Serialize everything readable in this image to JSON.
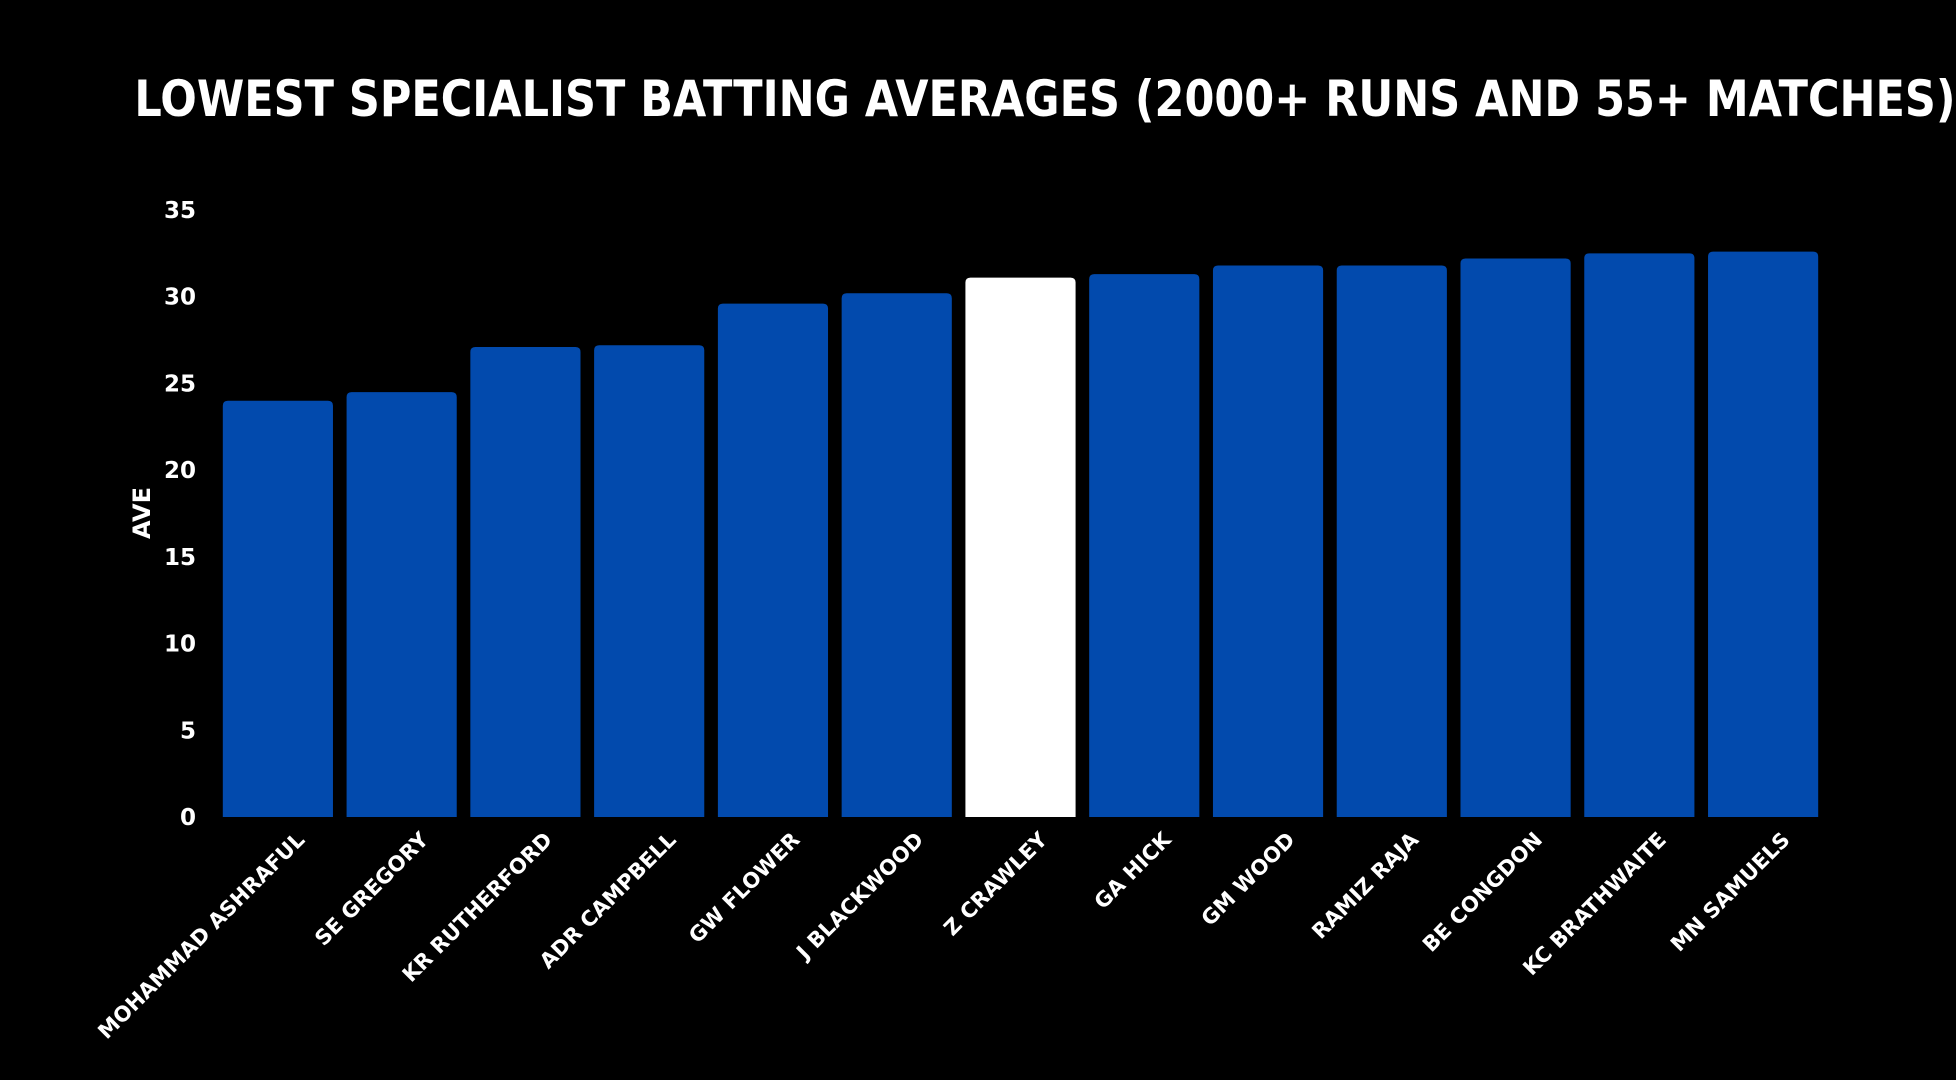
{
  "chart_data": {
    "type": "bar",
    "title": "LOWEST SPECIALIST BATTING AVERAGES (2000+ RUNS AND 55+ MATCHES)",
    "xlabel": "",
    "ylabel": "AVE",
    "ylim": [
      0,
      35
    ],
    "yticks": [
      "0",
      "5",
      "10",
      "15",
      "20",
      "25",
      "30",
      "35"
    ],
    "grid": false,
    "categories": [
      "MOHAMMAD ASHRAFUL",
      "SE GREGORY",
      "KR RUTHERFORD",
      "ADR CAMPBELL",
      "GW FLOWER",
      "J BLACKWOOD",
      "Z CRAWLEY",
      "GA HICK",
      "GM WOOD",
      "RAMIZ RAJA",
      "BE CONGDON",
      "KC BRATHWAITE",
      "MN SAMUELS"
    ],
    "values": [
      24.0,
      24.5,
      27.1,
      27.2,
      29.6,
      30.2,
      31.1,
      31.3,
      31.8,
      31.8,
      32.2,
      32.5,
      32.6
    ],
    "highlight": "Z CRAWLEY",
    "colors": {
      "background": "#000000",
      "bar": "#024AAD",
      "highlight_bar": "#FFFFFF",
      "text": "#FFFFFF"
    }
  }
}
